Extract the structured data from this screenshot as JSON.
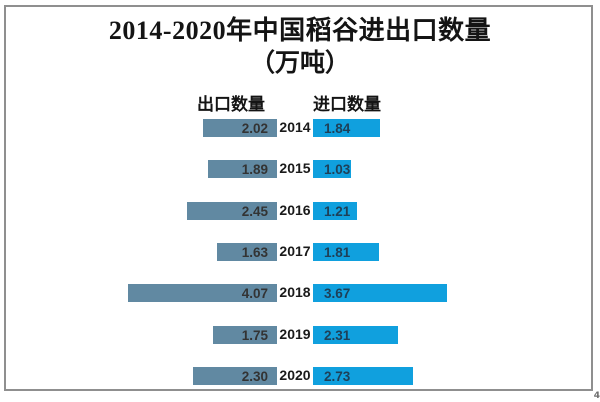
{
  "title": {
    "line1": "2014-2020年中国稻谷进出口数量",
    "line2": "（万吨）"
  },
  "legend": {
    "export_label": "出口数量",
    "import_label": "进口数量"
  },
  "corner_mark": "4",
  "colors": {
    "export_bar": "#6189a2",
    "import_bar": "#10a0de",
    "frame_border": "#8f8f8f",
    "export_value_text": "#333333",
    "import_value_text": "#1e4058",
    "title_text": "#141414"
  },
  "chart_data": {
    "type": "bar",
    "variant": "diverging-horizontal (tornado)",
    "title": "2014-2020年中国稻谷进出口数量（万吨）",
    "unit": "万吨",
    "categories": [
      "2014",
      "2015",
      "2016",
      "2017",
      "2018",
      "2019",
      "2020"
    ],
    "series": [
      {
        "name": "出口数量",
        "side": "left",
        "color": "#6189a2",
        "values": [
          2.02,
          1.89,
          2.45,
          1.63,
          4.07,
          1.75,
          2.3
        ],
        "labels": [
          "2.02",
          "1.89",
          "2.45",
          "1.63",
          "4.07",
          "1.75",
          "2.30"
        ]
      },
      {
        "name": "进口数量",
        "side": "right",
        "color": "#10a0de",
        "values": [
          1.84,
          1.03,
          1.21,
          1.81,
          3.67,
          2.31,
          2.73
        ],
        "labels": [
          "1.84",
          "1.03",
          "1.21",
          "1.81",
          "3.67",
          "2.31",
          "2.73"
        ]
      }
    ],
    "value_labels": "inside bars",
    "category_labels": "centered between bars",
    "grid": false,
    "axes": "none",
    "legend_position": "top"
  }
}
